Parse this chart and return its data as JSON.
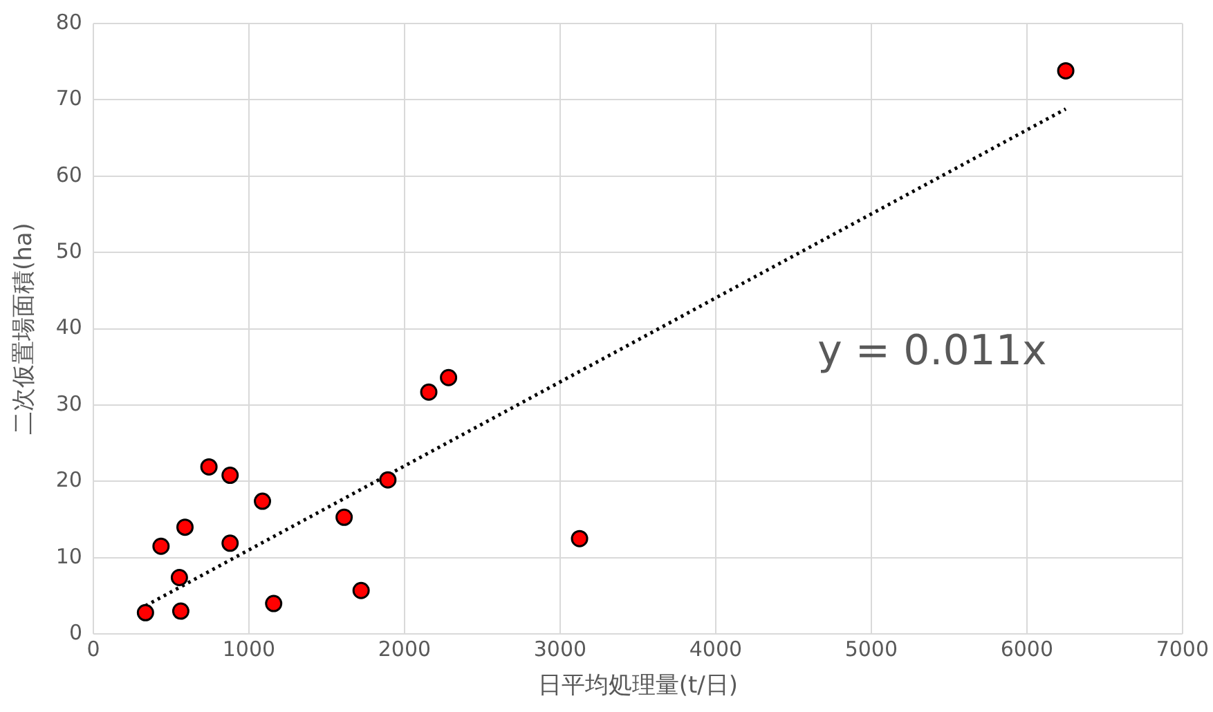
{
  "chart_data": {
    "type": "scatter",
    "xlabel": "日平均処理量(t/日)",
    "ylabel": "二次仮置場面積(ha)",
    "series": [
      {
        "type": "scatter",
        "color": "#ff0000",
        "marker": "circle",
        "x": [
          335,
          435,
          553,
          562,
          589,
          743,
          879,
          879,
          1087,
          1159,
          1612,
          1721,
          1893,
          2156,
          2283,
          3125,
          6250
        ],
        "values": [
          2.8,
          11.5,
          7.4,
          3.0,
          14.0,
          21.9,
          20.8,
          11.9,
          17.4,
          4.0,
          15.3,
          5.7,
          20.2,
          31.7,
          33.6,
          12.5,
          73.8
        ]
      },
      {
        "type": "line",
        "color": "#000000",
        "marker": "none",
        "line_style": "dotted",
        "x": [
          335,
          6250
        ],
        "values": [
          3.7,
          68.8
        ]
      }
    ],
    "xlim": [
      0,
      7000
    ],
    "xticks": [
      0,
      1000,
      2000,
      3000,
      4000,
      5000,
      6000,
      7000
    ],
    "ylim": [
      0,
      80
    ],
    "yticks": [
      0,
      10,
      20,
      30,
      40,
      50,
      60,
      70,
      80
    ],
    "grid": true,
    "legend": false,
    "annotations": [
      "y = 0.011x"
    ]
  }
}
